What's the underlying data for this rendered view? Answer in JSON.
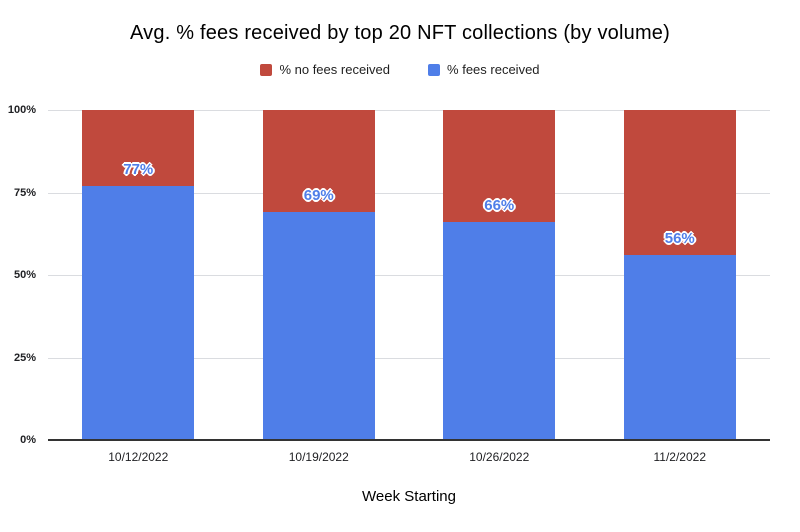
{
  "title": "Avg. % fees received by top 20 NFT collections (by volume)",
  "legend": [
    {
      "label": "% no fees received",
      "color": "#c0493d"
    },
    {
      "label": "% fees received",
      "color": "#4f7ee8"
    }
  ],
  "colors": {
    "fees_blue": "#4f7ee8",
    "no_fees_red": "#c0493d",
    "gridline": "#dadce0",
    "axis": "#333333"
  },
  "chart_data": {
    "type": "bar",
    "stacked": true,
    "title": "Avg. % fees received by top 20 NFT collections (by volume)",
    "categories": [
      "10/12/2022",
      "10/19/2022",
      "10/26/2022",
      "11/2/2022"
    ],
    "series": [
      {
        "name": "% fees received",
        "color": "#4f7ee8",
        "values": [
          77,
          69,
          66,
          56
        ]
      },
      {
        "name": "% no fees received",
        "color": "#c0493d",
        "values": [
          23,
          31,
          34,
          44
        ]
      }
    ],
    "data_labels": [
      "77%",
      "69%",
      "66%",
      "56%"
    ],
    "xlabel": "Week Starting",
    "ylabel": "",
    "ylim": [
      0,
      100
    ],
    "yticks": [
      "0%",
      "25%",
      "50%",
      "75%",
      "100%"
    ],
    "grid": true,
    "legend_position": "top"
  }
}
